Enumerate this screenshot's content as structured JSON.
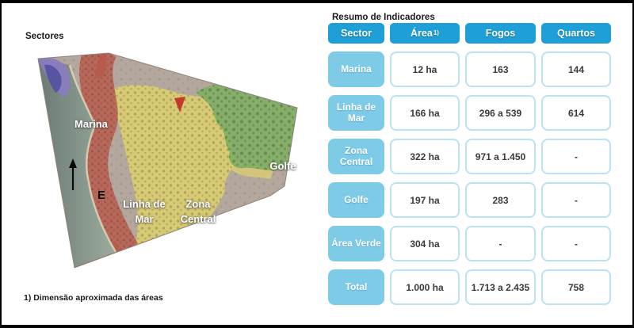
{
  "left_panel": {
    "title": "Sectores",
    "footnote": "1) Dimensão aproximada das áreas",
    "map": {
      "labels": {
        "marina": "Marina",
        "linha_de_mar_line1": "Linha de",
        "linha_de_mar_line2": "Mar",
        "zona_central_line1": "Zona",
        "zona_central_line2": "Central",
        "golfe": "Golfe",
        "compass": "E"
      },
      "colors": {
        "sea_dark": "#6b7a74",
        "sea_light": "#9dac9e",
        "marina": "#8a7cc0",
        "marina_inner": "#4f4f9e",
        "linha_de_mar": "#b65a4b",
        "zona_central": "#ddd06f",
        "golfe": "#7fae62",
        "terrain": "#b4a79e",
        "coast_sand": "#d9d2b4",
        "marker_red": "#c13a2a"
      }
    }
  },
  "table": {
    "title": "Resumo de Indicadores",
    "columns": [
      {
        "label": "Sector",
        "sup": ""
      },
      {
        "label": "Área",
        "sup": "1)"
      },
      {
        "label": "Fogos",
        "sup": ""
      },
      {
        "label": "Quartos",
        "sup": ""
      }
    ],
    "rows": [
      {
        "sector": "Marina",
        "area": "12 ha",
        "fogos": "163",
        "quartos": "144"
      },
      {
        "sector": "Linha de Mar",
        "area": "166 ha",
        "fogos": "296 a 539",
        "quartos": "614"
      },
      {
        "sector": "Zona Central",
        "area": "322 ha",
        "fogos": "971 a 1.450",
        "quartos": "-"
      },
      {
        "sector": "Golfe",
        "area": "197 ha",
        "fogos": "283",
        "quartos": "-"
      },
      {
        "sector": "Área Verde",
        "area": "304 ha",
        "fogos": "-",
        "quartos": "-"
      },
      {
        "sector": "Total",
        "area": "1.000 ha",
        "fogos": "1.713 a 2.435",
        "quartos": "758"
      }
    ],
    "colors": {
      "header_bg": "#1e9fd8",
      "row_label_bg": "#7ecbe8",
      "cell_border": "#b9e3f3"
    }
  }
}
